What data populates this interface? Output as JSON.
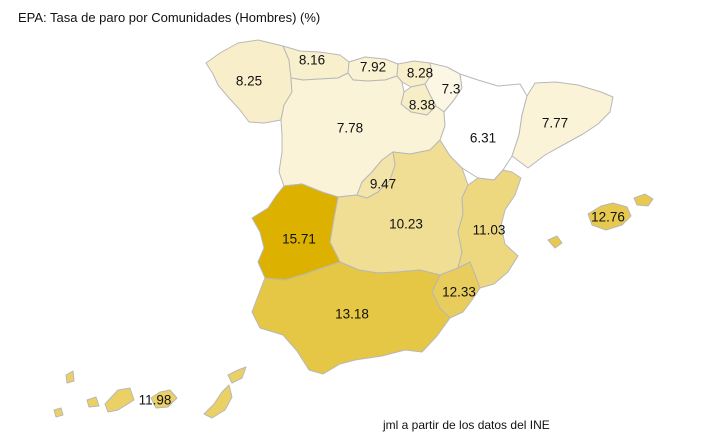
{
  "title": "EPA: Tasa de paro por Comunidades (Hombres) (%)",
  "source": "jml a partir de los datos del INE",
  "color_scale": {
    "low": "#ffffff",
    "high": "#dcb100"
  },
  "regions": [
    {
      "key": "galicia",
      "value": "8.25"
    },
    {
      "key": "asturias",
      "value": "8.16"
    },
    {
      "key": "cantabria",
      "value": "7.92"
    },
    {
      "key": "pais_vasco",
      "value": "8.28"
    },
    {
      "key": "navarra",
      "value": "7.3"
    },
    {
      "key": "la_rioja",
      "value": "8.38"
    },
    {
      "key": "aragon",
      "value": "6.31"
    },
    {
      "key": "cataluna",
      "value": "7.77"
    },
    {
      "key": "castilla_leon",
      "value": "7.78"
    },
    {
      "key": "madrid",
      "value": "9.47"
    },
    {
      "key": "castilla_la_mancha",
      "value": "10.23"
    },
    {
      "key": "valencia",
      "value": "11.03"
    },
    {
      "key": "baleares",
      "value": "12.76"
    },
    {
      "key": "extremadura",
      "value": "15.71"
    },
    {
      "key": "murcia",
      "value": "12.33"
    },
    {
      "key": "andalucia",
      "value": "13.18"
    },
    {
      "key": "canarias",
      "value": "11.98"
    }
  ]
}
